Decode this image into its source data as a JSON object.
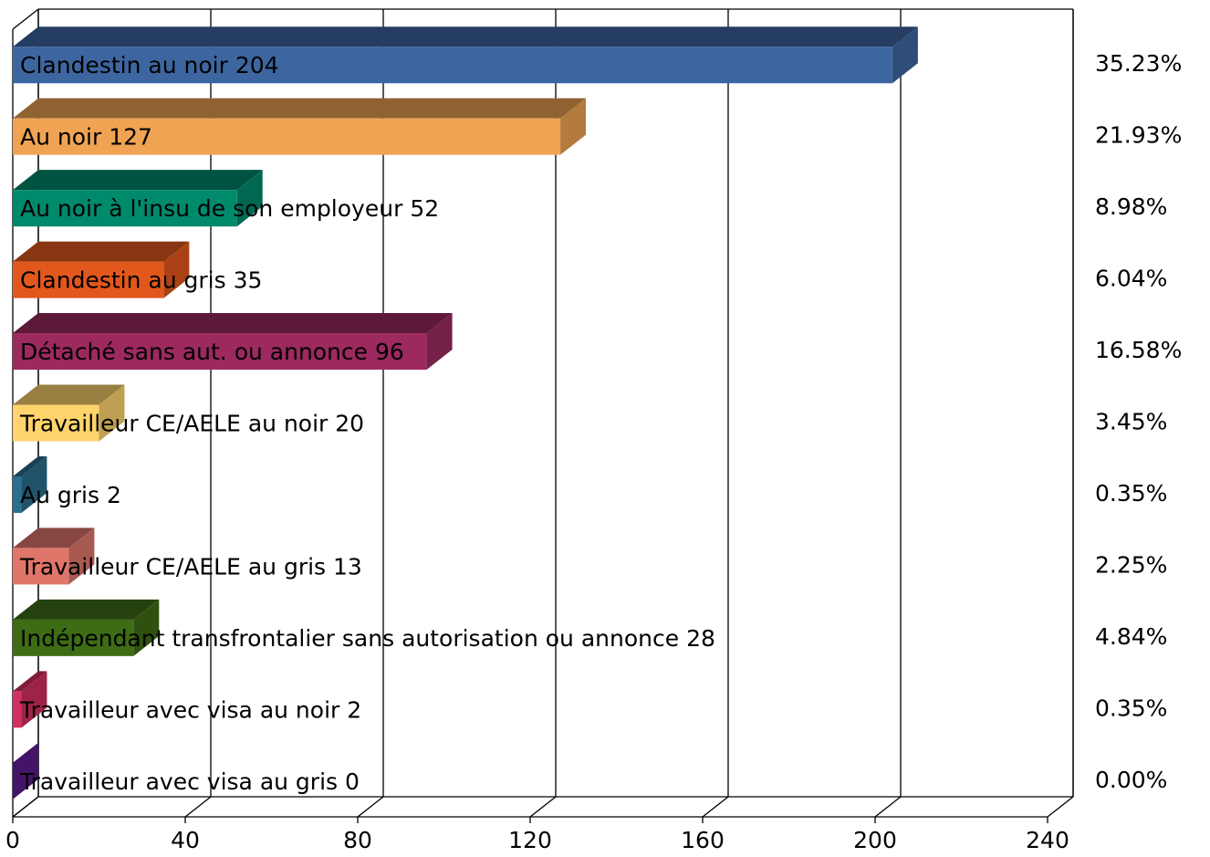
{
  "chart_data": {
    "type": "bar3d_horizontal",
    "categories": [
      "Clandestin au noir",
      "Au noir",
      "Au noir à l'insu de son employeur",
      "Clandestin au gris",
      "Détaché sans aut. ou annonce",
      "Travailleur CE/AELE au noir",
      "Au gris",
      "Travailleur CE/AELE au gris",
      "Indépendant transfrontalier sans autorisation ou annonce",
      "Travailleur avec visa au noir",
      "Travailleur avec visa au gris"
    ],
    "values": [
      204,
      127,
      52,
      35,
      96,
      20,
      2,
      13,
      28,
      2,
      0
    ],
    "percent_labels": [
      "35.23%",
      "21.93%",
      "8.98%",
      "6.04%",
      "16.58%",
      "3.45%",
      "0.35%",
      "2.25%",
      "4.84%",
      "0.35%",
      "0.00%"
    ],
    "colors": [
      "#3d66a0",
      "#f0a453",
      "#008a6c",
      "#e2581c",
      "#9c2a5e",
      "#ffd46c",
      "#2a6f8d",
      "#e0766a",
      "#3e6c15",
      "#d2305f",
      "#5b1a8c"
    ],
    "xlim": [
      0,
      240
    ],
    "xticks": [
      0,
      40,
      80,
      120,
      160,
      200,
      240
    ],
    "grid": true
  }
}
